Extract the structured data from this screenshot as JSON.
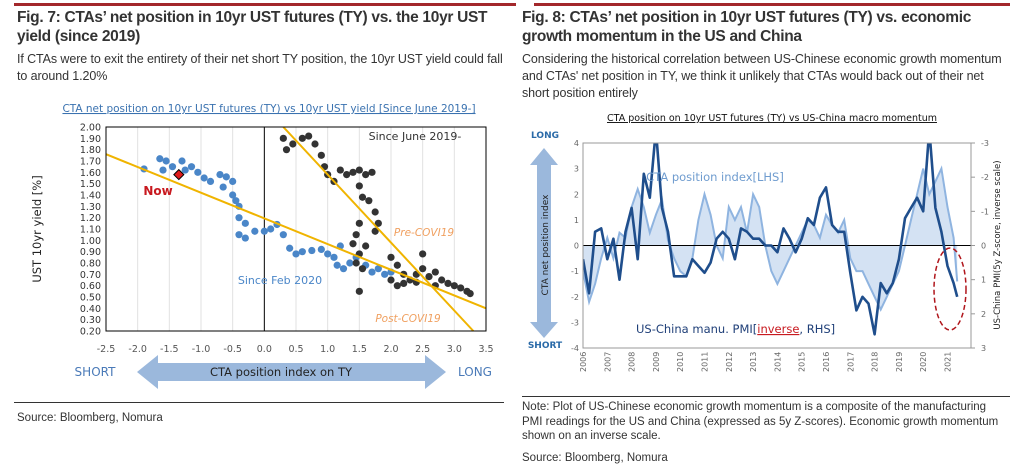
{
  "left": {
    "title": "Fig. 7: CTAs’ net position in 10yr UST futures (TY) vs. the 10yr UST yield (since 2019)",
    "description": "If CTAs were to exit the entirety of their net short TY position, the 10yr UST yield could fall to around 1.20%",
    "source": "Source: Bloomberg, Nomura"
  },
  "right": {
    "title": "Fig. 8: CTAs’ net position in 10yr UST futures (TY) vs. economic growth momentum in the US and China",
    "description": "Considering the historical correlation between US-Chinese economic growth momentum and CTAs' net position in TY, we think it unlikely that CTAs would back out of their net short position entirely",
    "note": "Note: Plot of US-Chinese economic growth momentum is a composite of the manufacturing PMI readings for the US and China (expressed as 5y Z-scores). Economic growth momentum shown on an inverse scale.",
    "source": "Source: Bloomberg, Nomura"
  },
  "colors": {
    "accent_red": "#a3282b",
    "blue_points": "#4a86c8",
    "dark_points": "#333333",
    "trend": "#f0b400",
    "light_series": "#8fb4e0",
    "dark_series": "#1f4e8c",
    "arrow": "#9bb8dc"
  },
  "chart_data": [
    {
      "type": "scatter",
      "title": "CTA net  position on 10yr UST futures (TY) vs 10yr UST yield [Since June 2019-]",
      "xlabel": "CTA position index on TY",
      "ylabel": "UST 10yr yield [%]",
      "xlim": [
        -2.5,
        3.5
      ],
      "ylim": [
        0.2,
        2.0
      ],
      "x_ticks": [
        "-2.5",
        "-2.0",
        "-1.5",
        "-1.0",
        "-0.5",
        "0.0",
        "0.5",
        "1.0",
        "1.5",
        "2.0",
        "2.5",
        "3.0",
        "3.5"
      ],
      "y_ticks": [
        "2.00",
        "1.90",
        "1.80",
        "1.70",
        "1.60",
        "1.50",
        "1.40",
        "1.30",
        "1.20",
        "1.10",
        "1.00",
        "0.90",
        "0.80",
        "0.70",
        "0.60",
        "0.50",
        "0.40",
        "0.30",
        "0.20"
      ],
      "grid": "vertical",
      "axis_left": "SHORT",
      "axis_right": "LONG",
      "annotations": {
        "period": "Since June 2019-",
        "now": "Now",
        "blue_label": "Since Feb 2020",
        "pre": "Pre-COVI19",
        "post": "Post-COVI19"
      },
      "now_point": [
        -1.35,
        1.58
      ],
      "series": [
        {
          "color": "#4a86c8",
          "points": [
            [
              -1.9,
              1.63
            ],
            [
              -1.65,
              1.72
            ],
            [
              -1.55,
              1.7
            ],
            [
              -1.6,
              1.62
            ],
            [
              -1.45,
              1.65
            ],
            [
              -1.3,
              1.7
            ],
            [
              -1.25,
              1.62
            ],
            [
              -1.15,
              1.65
            ],
            [
              -1.05,
              1.6
            ],
            [
              -0.95,
              1.55
            ],
            [
              -0.85,
              1.52
            ],
            [
              -0.7,
              1.58
            ],
            [
              -0.6,
              1.56
            ],
            [
              -0.5,
              1.52
            ],
            [
              -0.65,
              1.47
            ],
            [
              -0.5,
              1.4
            ],
            [
              -0.45,
              1.35
            ],
            [
              -0.4,
              1.3
            ],
            [
              -0.4,
              1.2
            ],
            [
              -0.3,
              1.15
            ],
            [
              -0.4,
              1.05
            ],
            [
              -0.3,
              1.02
            ],
            [
              -0.15,
              1.08
            ],
            [
              0.0,
              1.08
            ],
            [
              0.1,
              1.1
            ],
            [
              0.2,
              1.14
            ],
            [
              0.3,
              1.05
            ],
            [
              0.4,
              0.93
            ],
            [
              0.5,
              0.88
            ],
            [
              0.6,
              0.9
            ],
            [
              0.75,
              0.91
            ],
            [
              0.9,
              0.92
            ],
            [
              1.0,
              0.88
            ],
            [
              1.1,
              0.85
            ],
            [
              1.15,
              0.78
            ],
            [
              1.2,
              0.95
            ],
            [
              1.25,
              0.75
            ],
            [
              1.35,
              0.8
            ],
            [
              1.45,
              0.85
            ],
            [
              1.6,
              0.78
            ],
            [
              1.7,
              0.72
            ],
            [
              1.8,
              0.75
            ],
            [
              1.9,
              0.7
            ],
            [
              2.0,
              0.72
            ]
          ]
        },
        {
          "color": "#333333",
          "points": [
            [
              0.3,
              1.9
            ],
            [
              0.35,
              1.8
            ],
            [
              0.45,
              1.85
            ],
            [
              0.6,
              1.9
            ],
            [
              0.7,
              1.92
            ],
            [
              0.8,
              1.85
            ],
            [
              0.9,
              1.75
            ],
            [
              0.95,
              1.65
            ],
            [
              1.0,
              1.58
            ],
            [
              1.1,
              1.52
            ],
            [
              1.2,
              1.62
            ],
            [
              1.3,
              1.58
            ],
            [
              1.4,
              1.6
            ],
            [
              1.5,
              1.62
            ],
            [
              1.6,
              1.58
            ],
            [
              1.7,
              1.6
            ],
            [
              1.5,
              1.48
            ],
            [
              1.55,
              1.38
            ],
            [
              1.65,
              1.35
            ],
            [
              1.75,
              1.25
            ],
            [
              1.8,
              1.15
            ],
            [
              1.75,
              1.08
            ],
            [
              1.5,
              1.15
            ],
            [
              1.45,
              1.05
            ],
            [
              1.4,
              0.97
            ],
            [
              1.6,
              0.95
            ],
            [
              1.5,
              0.88
            ],
            [
              1.45,
              0.8
            ],
            [
              1.55,
              0.75
            ],
            [
              1.5,
              0.55
            ],
            [
              2.0,
              0.85
            ],
            [
              2.1,
              0.78
            ],
            [
              2.2,
              0.7
            ],
            [
              2.0,
              0.65
            ],
            [
              2.1,
              0.6
            ],
            [
              2.3,
              0.65
            ],
            [
              2.4,
              0.7
            ],
            [
              2.5,
              0.88
            ],
            [
              2.5,
              0.75
            ],
            [
              2.6,
              0.68
            ],
            [
              2.7,
              0.72
            ],
            [
              2.8,
              0.65
            ],
            [
              2.9,
              0.62
            ],
            [
              3.0,
              0.6
            ],
            [
              3.1,
              0.58
            ],
            [
              3.2,
              0.55
            ],
            [
              3.25,
              0.53
            ],
            [
              2.7,
              0.6
            ],
            [
              2.4,
              0.63
            ],
            [
              2.2,
              0.62
            ]
          ]
        }
      ],
      "trend_lines": [
        {
          "name": "Post-COVI19",
          "from": [
            -2.5,
            1.76
          ],
          "to": [
            3.5,
            0.4
          ]
        },
        {
          "name": "Pre-COVI19",
          "from": [
            0.3,
            2.0
          ],
          "to": [
            3.3,
            0.2
          ]
        }
      ]
    },
    {
      "type": "line",
      "title": "CTA position on 10yr UST futures (TY) vs US-China macro momentum",
      "ylabel_left": "CTA net position index",
      "ylabel_right": "US-China PMI(5y Z-score, inverse scale)",
      "ylim_left": [
        -4,
        4
      ],
      "ylim_right": [
        3,
        -3
      ],
      "y_ticks_left": [
        "4",
        "3",
        "2",
        "1",
        "0",
        "-1",
        "-2",
        "-3",
        "-4"
      ],
      "y_ticks_right": [
        "-3",
        "-2",
        "-1",
        "0",
        "1",
        "2",
        "3"
      ],
      "x_ticks": [
        "2006",
        "2007",
        "2008",
        "2009",
        "2010",
        "2011",
        "2012",
        "2013",
        "2014",
        "2015",
        "2016",
        "2017",
        "2018",
        "2019",
        "2020",
        "2021"
      ],
      "axis_top": "LONG",
      "axis_bottom": "SHORT",
      "labels": {
        "cta": "CTA position index[LHS]",
        "pmi_prefix": "US-China manu. PMI[",
        "pmi_inverse": "inverse",
        "pmi_suffix": ", RHS]"
      },
      "x": [
        2006,
        2006.25,
        2006.5,
        2006.75,
        2007,
        2007.25,
        2007.5,
        2007.75,
        2008,
        2008.25,
        2008.5,
        2008.75,
        2009,
        2009.25,
        2009.5,
        2009.75,
        2010,
        2010.25,
        2010.5,
        2010.75,
        2011,
        2011.25,
        2011.5,
        2011.75,
        2012,
        2012.25,
        2012.5,
        2012.75,
        2013,
        2013.25,
        2013.5,
        2013.75,
        2014,
        2014.25,
        2014.5,
        2014.75,
        2015,
        2015.25,
        2015.5,
        2015.75,
        2016,
        2016.25,
        2016.5,
        2016.75,
        2017,
        2017.25,
        2017.5,
        2017.75,
        2018,
        2018.25,
        2018.5,
        2018.75,
        2019,
        2019.25,
        2019.5,
        2019.75,
        2020,
        2020.25,
        2020.5,
        2020.75,
        2021,
        2021.25,
        2021.4
      ],
      "series": [
        {
          "name": "CTA position index[LHS]",
          "axis": "left",
          "color": "#8fb4e0",
          "values": [
            -1,
            -2.2,
            -1.5,
            -0.5,
            0.3,
            -0.5,
            0.5,
            0.3,
            1.5,
            2.2,
            1.5,
            0.5,
            1.2,
            1.8,
            0.2,
            -0.5,
            -1,
            -1.2,
            -0.5,
            1,
            2,
            1.2,
            0,
            -0.5,
            1.5,
            1,
            1.5,
            0.5,
            2,
            1.5,
            0,
            -1,
            -1.5,
            -1,
            -0.5,
            0,
            0.5,
            1,
            0.8,
            0.3,
            1.2,
            0.8,
            0.5,
            1,
            -0.5,
            -1,
            -1,
            -1.5,
            -2,
            -2.5,
            -2,
            -1.5,
            -1,
            0,
            1,
            2,
            3,
            2,
            2.5,
            3,
            1.5,
            0.3,
            -1.4
          ]
        },
        {
          "name": "US-China manu. PMI[inverse, RHS]",
          "axis": "right",
          "color": "#1f4e8c",
          "values": [
            0.4,
            1.4,
            -0.4,
            -0.5,
            0.4,
            -0.2,
            1.0,
            -0.4,
            -1.1,
            0.4,
            -2.1,
            -1.4,
            -3.4,
            -1.1,
            -0.4,
            0.9,
            0.9,
            0.9,
            0.4,
            0.6,
            0.8,
            0.5,
            -0.2,
            -0.4,
            -0.2,
            0.4,
            -0.5,
            -0.4,
            -0.2,
            -0.2,
            0,
            0,
            0.2,
            -0.5,
            -0.2,
            0.2,
            -0.2,
            -0.8,
            -0.6,
            -1.4,
            -1.7,
            -0.6,
            -0.4,
            -0.4,
            0.8,
            1.9,
            1.5,
            1.7,
            2.6,
            1.1,
            1.4,
            1.1,
            0.4,
            -0.8,
            -1.1,
            -1.4,
            -1.0,
            -3.4,
            -1.1,
            -0.4,
            0.6,
            1.1,
            1.5
          ]
        }
      ]
    }
  ]
}
